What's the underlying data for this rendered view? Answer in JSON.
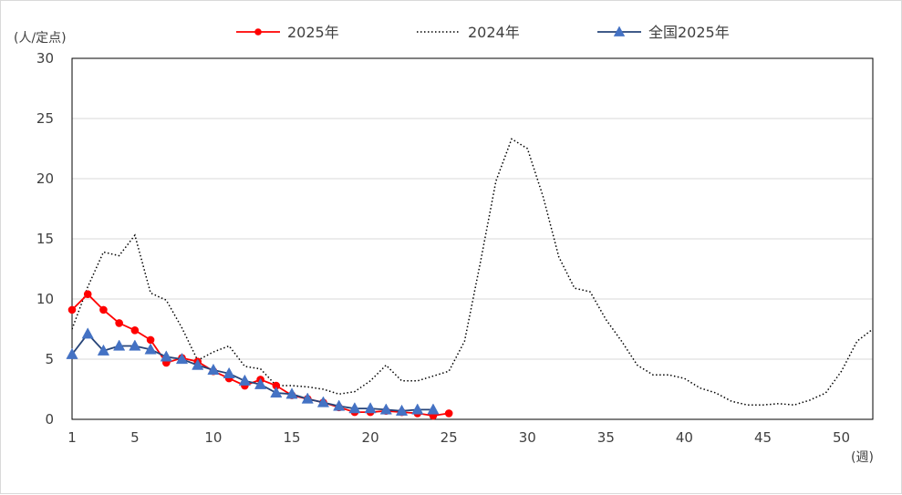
{
  "chart_data": {
    "type": "line",
    "ylabel": "(人/定点)",
    "xlabel": "(週)",
    "xlim": [
      1,
      52
    ],
    "ylim": [
      0,
      30
    ],
    "yticks": [
      0,
      5,
      10,
      15,
      20,
      25,
      30
    ],
    "xticks": [
      1,
      5,
      10,
      15,
      20,
      25,
      30,
      35,
      40,
      45,
      50
    ],
    "grid": "horizontal",
    "legend": "top",
    "series": [
      {
        "name": "2025年",
        "color": "#ff0000",
        "style": "solid-circle",
        "x": [
          1,
          2,
          3,
          4,
          5,
          6,
          7,
          8,
          9,
          10,
          11,
          12,
          13,
          14,
          15,
          16,
          17,
          18,
          19,
          20,
          21,
          22,
          23,
          24,
          25
        ],
        "values": [
          9.1,
          10.4,
          9.1,
          8.0,
          7.4,
          6.6,
          4.7,
          5.1,
          4.8,
          4.0,
          3.4,
          2.8,
          3.3,
          2.8,
          2.0,
          1.7,
          1.4,
          1.0,
          0.6,
          0.6,
          0.7,
          0.6,
          0.5,
          0.3,
          0.5
        ]
      },
      {
        "name": "2024年",
        "color": "#000000",
        "style": "dotted",
        "x": [
          1,
          2,
          3,
          4,
          5,
          6,
          7,
          8,
          9,
          10,
          11,
          12,
          13,
          14,
          15,
          16,
          17,
          18,
          19,
          20,
          21,
          22,
          23,
          24,
          25,
          26,
          27,
          28,
          29,
          30,
          31,
          32,
          33,
          34,
          35,
          36,
          37,
          38,
          39,
          40,
          41,
          42,
          43,
          44,
          45,
          46,
          47,
          48,
          49,
          50,
          51,
          52
        ],
        "values": [
          7.5,
          11.0,
          13.9,
          13.6,
          15.3,
          10.5,
          9.9,
          7.6,
          4.9,
          5.6,
          6.1,
          4.4,
          4.2,
          2.8,
          2.8,
          2.7,
          2.5,
          2.1,
          2.3,
          3.2,
          4.5,
          3.2,
          3.2,
          3.6,
          4.0,
          6.5,
          13.0,
          19.8,
          23.3,
          22.5,
          18.5,
          13.5,
          10.9,
          10.6,
          8.3,
          6.5,
          4.5,
          3.7,
          3.7,
          3.4,
          2.6,
          2.2,
          1.5,
          1.2,
          1.2,
          1.3,
          1.2,
          1.6,
          2.2,
          4.0,
          6.5,
          7.5
        ]
      },
      {
        "name": "全国2025年",
        "color": "#264478",
        "marker_color": "#4472c4",
        "style": "solid-triangle",
        "x": [
          1,
          2,
          3,
          4,
          5,
          6,
          7,
          8,
          9,
          10,
          11,
          12,
          13,
          14,
          15,
          16,
          17,
          18,
          19,
          20,
          21,
          22,
          23,
          24
        ],
        "values": [
          5.4,
          7.1,
          5.7,
          6.1,
          6.1,
          5.8,
          5.2,
          5.0,
          4.5,
          4.1,
          3.8,
          3.2,
          2.9,
          2.2,
          2.1,
          1.7,
          1.4,
          1.1,
          0.9,
          0.9,
          0.8,
          0.7,
          0.8,
          0.8
        ]
      }
    ]
  }
}
